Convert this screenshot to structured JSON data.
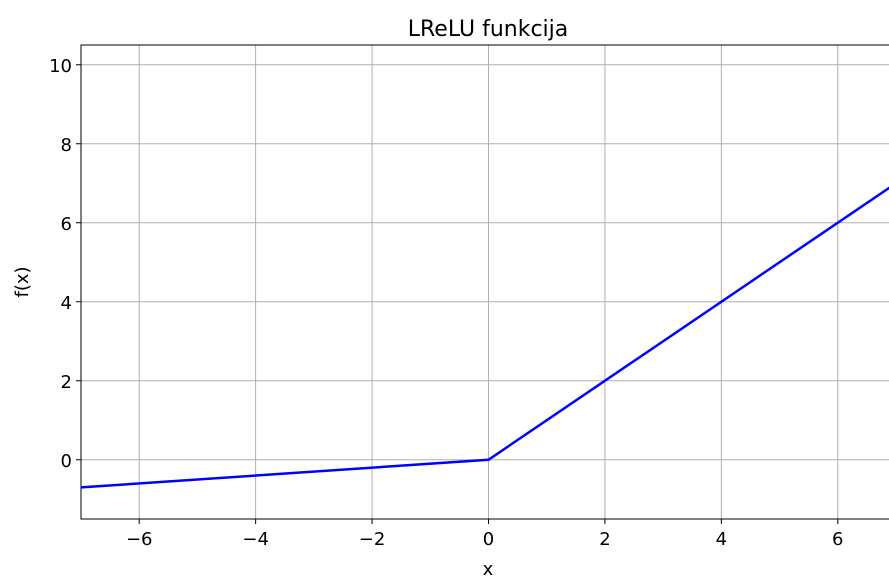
{
  "chart_data": {
    "type": "line",
    "title": "LReLU funkcija",
    "x_label": "x",
    "y_label": "f(x)",
    "series": [
      {
        "name": "LReLU",
        "color": "#0000ff",
        "x": [
          -7,
          0,
          7
        ],
        "values": [
          -0.7,
          0,
          7
        ]
      }
    ],
    "xlim": [
      -7,
      7
    ],
    "ylim": [
      -1.5,
      10.5
    ],
    "xticks": [
      {
        "value": -6,
        "label": "−6"
      },
      {
        "value": -4,
        "label": "−4"
      },
      {
        "value": -2,
        "label": "−2"
      },
      0,
      2,
      4,
      6
    ],
    "yticks": [
      0,
      2,
      4,
      6,
      8,
      10
    ],
    "grid": true
  }
}
